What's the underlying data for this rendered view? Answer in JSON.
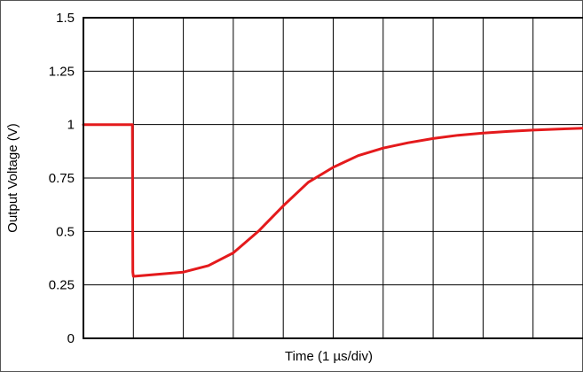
{
  "chart_data": {
    "type": "line",
    "title": "",
    "xlabel": "Time (1 µs/div)",
    "ylabel": "Output Voltage (V)",
    "xlim": [
      0,
      10
    ],
    "ylim": [
      0,
      1.5
    ],
    "x_divisions": 10,
    "y_ticks": [
      0,
      0.25,
      0.5,
      0.75,
      1,
      1.25,
      1.5
    ],
    "y_tick_labels": [
      "0",
      "0.25",
      "0.5",
      "0.75",
      "1",
      "1.25",
      "1.5"
    ],
    "grid": true,
    "legend": "none",
    "series": [
      {
        "color": "#e41a1c",
        "x": [
          0,
          0.98,
          0.99,
          1.0,
          1.5,
          2.0,
          2.5,
          3.0,
          3.5,
          4.0,
          4.5,
          5.0,
          5.5,
          6.0,
          6.5,
          7.0,
          7.5,
          8.0,
          8.5,
          9.0,
          9.5,
          10.0
        ],
        "y": [
          1.0,
          1.0,
          0.31,
          0.29,
          0.3,
          0.31,
          0.34,
          0.4,
          0.5,
          0.62,
          0.73,
          0.8,
          0.855,
          0.89,
          0.915,
          0.935,
          0.95,
          0.96,
          0.968,
          0.974,
          0.979,
          0.983
        ]
      }
    ]
  }
}
